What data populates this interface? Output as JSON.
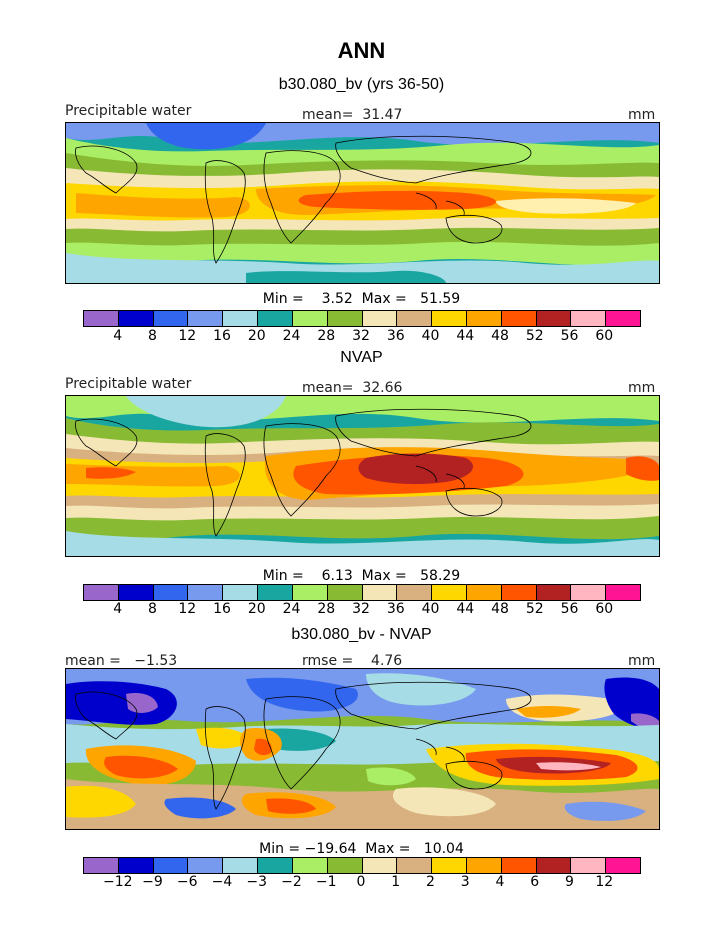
{
  "figure": {
    "title": "ANN"
  },
  "colors": {
    "precip_palette": [
      "#9966cc",
      "#0000cc",
      "#3366ee",
      "#7799ee",
      "#a6dce6",
      "#1aa6a0",
      "#aaee66",
      "#88bb33",
      "#f5e6b8",
      "#d9b080",
      "#ffd700",
      "#ffa500",
      "#ff5500",
      "#b22222",
      "#ffb6c1",
      "#ff1493"
    ],
    "diff_palette": [
      "#9966cc",
      "#0000cc",
      "#3366ee",
      "#7799ee",
      "#a6dce6",
      "#1aa6a0",
      "#aaee66",
      "#88bb33",
      "#f5e6b8",
      "#d9b080",
      "#ffd700",
      "#ffa500",
      "#ff5500",
      "#b22222",
      "#ffb6c1",
      "#ff1493"
    ]
  },
  "panels": [
    {
      "title": "b30.080_bv (yrs 36-50)",
      "left_label": "Precipitable water",
      "center_label": "mean=  31.47",
      "right_label": "mm",
      "minmax": "Min =    3.52  Max =   51.59",
      "ticks": [
        "4",
        "8",
        "12",
        "16",
        "20",
        "24",
        "28",
        "32",
        "36",
        "40",
        "44",
        "48",
        "52",
        "56",
        "60"
      ]
    },
    {
      "title": "NVAP",
      "left_label": "Precipitable water",
      "center_label": "mean=  32.66",
      "right_label": "mm",
      "minmax": "Min =    6.13  Max =   58.29",
      "ticks": [
        "4",
        "8",
        "12",
        "16",
        "20",
        "24",
        "28",
        "32",
        "36",
        "40",
        "44",
        "48",
        "52",
        "56",
        "60"
      ]
    },
    {
      "title": "b30.080_bv - NVAP",
      "left_label": "mean =   −1.53",
      "center_label": "rmse =    4.76",
      "right_label": "mm",
      "minmax": "Min = −19.64  Max =   10.04",
      "ticks": [
        "−12",
        "−9",
        "−6",
        "−4",
        "−3",
        "−2",
        "−1",
        "0",
        "1",
        "2",
        "3",
        "4",
        "6",
        "9",
        "12"
      ]
    }
  ]
}
